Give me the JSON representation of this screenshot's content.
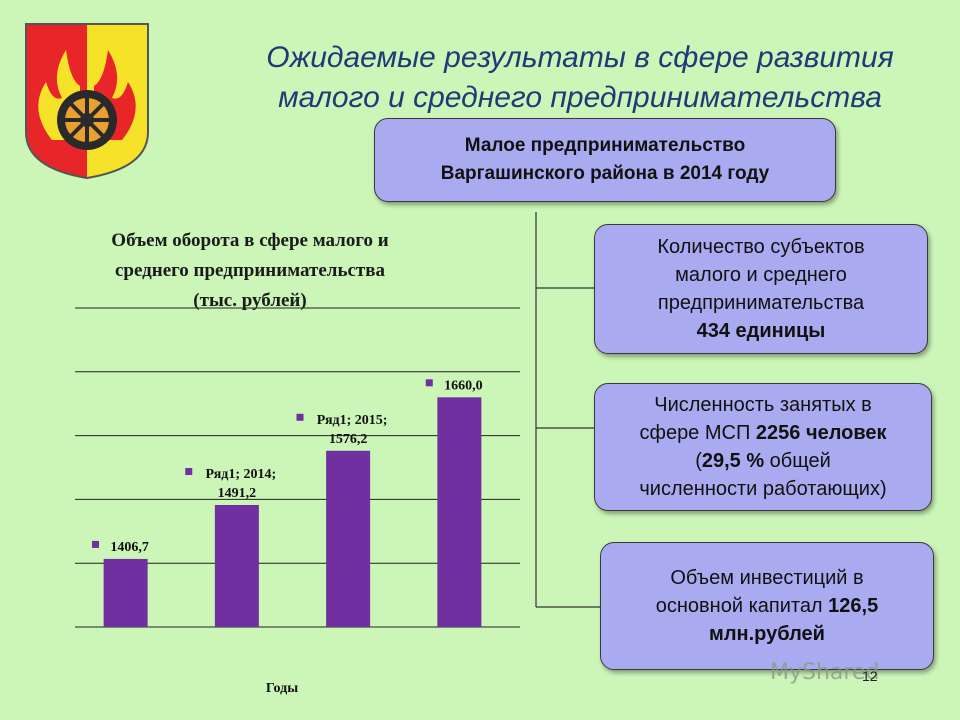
{
  "title": {
    "line1": "Ожидаемые результаты в сфере развития",
    "line2": "малого и среднего предпринимательства"
  },
  "header_box": {
    "line1": "Малое предпринимательство",
    "line2": "Варгашинского района в 2014 году"
  },
  "info_boxes": [
    {
      "line1": "Количество субъектов",
      "line2": "малого и среднего",
      "line3": "предпринимательства",
      "line4": "434 единицы"
    },
    {
      "line1": "Численность занятых в",
      "line2_text": "сфере МСП ",
      "line2_bold": "2256 человек",
      "line3_open": "(",
      "line3_bold": "29,5 %",
      "line3_text": " общей",
      "line4": "численности работающих)"
    },
    {
      "line1": "Объем инвестиций в",
      "line2_text": "основной капитал ",
      "line2_bold": "126,5",
      "line3": "млн.рублей"
    }
  ],
  "chart_data": {
    "type": "bar",
    "title_lines": [
      "Объем оборота в сфере малого и",
      "среднего предпринимательства",
      "(тыс. рублей)"
    ],
    "xlabel": "Годы",
    "ylabel": "",
    "categories": [
      "",
      "2014",
      "2015",
      ""
    ],
    "values": [
      1406.7,
      1491.2,
      1576.2,
      1660.0
    ],
    "data_labels": [
      [
        "1406,7"
      ],
      [
        "Ряд1; 2014;",
        "1491,2"
      ],
      [
        "Ряд1; 2015;",
        "1576,2"
      ],
      [
        "1660,0"
      ]
    ],
    "series": [
      {
        "name": "Ряд1",
        "values": [
          1406.7,
          1491.2,
          1576.2,
          1660.0
        ]
      }
    ],
    "ylim": [
      1300,
      1800
    ],
    "grid": true,
    "bar_color": "#7030a0"
  },
  "colors": {
    "background": "#ccf5b8",
    "box_fill": "#aaaaf0",
    "title_color": "#1f3a78",
    "bar": "#7030a0"
  },
  "emblem": {
    "icon": "coat-of-arms-wheel-flames-icon"
  },
  "watermark": "MyShared",
  "page_number": "12"
}
